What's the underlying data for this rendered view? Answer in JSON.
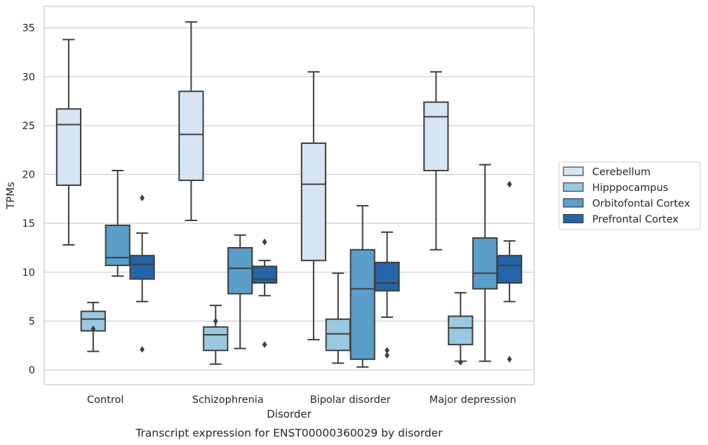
{
  "chart_data": {
    "type": "boxplot",
    "title": "",
    "caption": "Transcript expression for ENST00000360029 by disorder",
    "xlabel": "Disorder",
    "ylabel": "TPMs",
    "ylim": [
      -1.5,
      37.2
    ],
    "yticks": [
      0,
      5,
      10,
      15,
      20,
      25,
      30,
      35
    ],
    "grid": "horizontal",
    "legend_position": "right",
    "categories": [
      "Control",
      "Schizophrenia",
      "Bipolar disorder",
      "Major depression"
    ],
    "series": [
      {
        "name": "Cerebellum",
        "color": "#d6e5f3",
        "boxes": [
          {
            "whislo": 12.8,
            "q1": 18.9,
            "med": 25.1,
            "q3": 26.7,
            "whishi": 33.8,
            "fliers": []
          },
          {
            "whislo": 15.3,
            "q1": 19.4,
            "med": 24.1,
            "q3": 28.5,
            "whishi": 35.6,
            "fliers": []
          },
          {
            "whislo": 3.1,
            "q1": 11.2,
            "med": 19.0,
            "q3": 23.2,
            "whishi": 30.5,
            "fliers": []
          },
          {
            "whislo": 12.3,
            "q1": 20.4,
            "med": 25.9,
            "q3": 27.4,
            "whishi": 30.5,
            "fliers": []
          }
        ]
      },
      {
        "name": "Hipppocampus",
        "color": "#9ac8e0",
        "boxes": [
          {
            "whislo": 1.9,
            "q1": 4.0,
            "med": 5.2,
            "q3": 6.0,
            "whishi": 6.9,
            "fliers": [
              4.2
            ]
          },
          {
            "whislo": 0.6,
            "q1": 2.0,
            "med": 3.6,
            "q3": 4.4,
            "whishi": 6.6,
            "fliers": [
              5.0
            ]
          },
          {
            "whislo": 0.7,
            "q1": 2.0,
            "med": 3.7,
            "q3": 5.2,
            "whishi": 9.9,
            "fliers": []
          },
          {
            "whislo": 0.9,
            "q1": 2.6,
            "med": 4.3,
            "q3": 5.5,
            "whishi": 7.9,
            "fliers": [
              0.8
            ]
          }
        ]
      },
      {
        "name": "Orbitofontal Cortex",
        "color": "#5a9ec9",
        "boxes": [
          {
            "whislo": 9.6,
            "q1": 10.7,
            "med": 11.5,
            "q3": 14.8,
            "whishi": 20.4,
            "fliers": []
          },
          {
            "whislo": 2.2,
            "q1": 7.8,
            "med": 10.4,
            "q3": 12.5,
            "whishi": 13.8,
            "fliers": []
          },
          {
            "whislo": 0.3,
            "q1": 1.1,
            "med": 8.3,
            "q3": 12.3,
            "whishi": 16.8,
            "fliers": []
          },
          {
            "whislo": 0.9,
            "q1": 8.3,
            "med": 9.9,
            "q3": 13.5,
            "whishi": 21.0,
            "fliers": []
          }
        ]
      },
      {
        "name": "Prefrontal Cortex",
        "color": "#2464a9",
        "boxes": [
          {
            "whislo": 7.0,
            "q1": 9.3,
            "med": 10.8,
            "q3": 11.7,
            "whishi": 14.0,
            "fliers": [
              17.6,
              2.1
            ]
          },
          {
            "whislo": 7.6,
            "q1": 8.9,
            "med": 9.3,
            "q3": 10.6,
            "whishi": 11.2,
            "fliers": [
              13.1,
              2.6
            ]
          },
          {
            "whislo": 5.4,
            "q1": 8.1,
            "med": 8.9,
            "q3": 11.0,
            "whishi": 14.1,
            "fliers": [
              1.5,
              2.0
            ]
          },
          {
            "whislo": 7.0,
            "q1": 8.9,
            "med": 10.7,
            "q3": 11.7,
            "whishi": 13.2,
            "fliers": [
              19.0,
              1.1
            ]
          }
        ]
      }
    ]
  }
}
